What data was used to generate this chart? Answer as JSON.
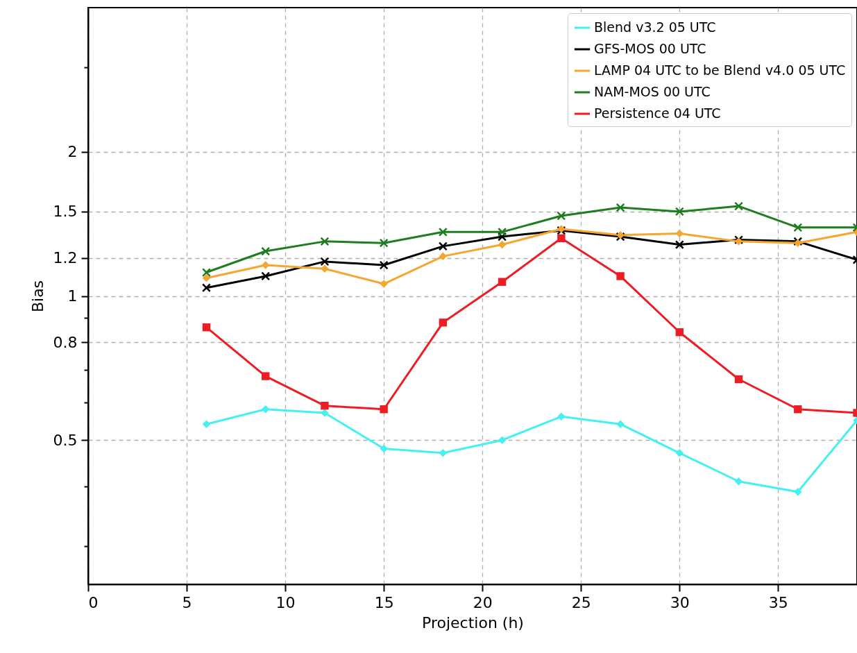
{
  "chart_data": {
    "type": "line",
    "xlabel": "Projection (h)",
    "ylabel": "Bias",
    "x": [
      6,
      9,
      12,
      15,
      18,
      21,
      24,
      27,
      30,
      33,
      36,
      39
    ],
    "series": [
      {
        "name": "Blend v3.2 05 UTC",
        "color": "#44f0f0",
        "marker": "diamond",
        "values": [
          0.54,
          0.58,
          0.57,
          0.48,
          0.47,
          0.5,
          0.56,
          0.54,
          0.47,
          0.41,
          0.39,
          0.55
        ]
      },
      {
        "name": "GFS-MOS 00 UTC",
        "color": "#000000",
        "marker": "cross",
        "values": [
          1.04,
          1.1,
          1.18,
          1.16,
          1.27,
          1.33,
          1.37,
          1.33,
          1.28,
          1.31,
          1.3,
          1.19
        ]
      },
      {
        "name": "LAMP 04 UTC to be Blend v4.0 05 UTC",
        "color": "#f5a530",
        "marker": "diamond",
        "values": [
          1.09,
          1.16,
          1.14,
          1.06,
          1.21,
          1.28,
          1.38,
          1.34,
          1.35,
          1.3,
          1.29,
          1.36
        ]
      },
      {
        "name": "NAM-MOS 00 UTC",
        "color": "#1e7d1e",
        "marker": "cross",
        "values": [
          1.12,
          1.24,
          1.3,
          1.29,
          1.36,
          1.36,
          1.47,
          1.53,
          1.5,
          1.54,
          1.39,
          1.39
        ]
      },
      {
        "name": "Persistence 04 UTC",
        "color": "#ee1c24",
        "marker": "square",
        "values": [
          0.86,
          0.68,
          0.59,
          0.58,
          0.88,
          1.07,
          1.32,
          1.1,
          0.84,
          0.67,
          0.58,
          0.57
        ]
      }
    ],
    "log": "y",
    "xlim": [
      0,
      39
    ],
    "ylim": [
      0.25,
      4
    ],
    "xticks": [
      0,
      5,
      10,
      15,
      20,
      25,
      30,
      35
    ],
    "yticks": [
      {
        "value": 0.3,
        "label": null
      },
      {
        "value": 0.4,
        "label": null
      },
      0.5,
      {
        "value": 0.6,
        "label": null
      },
      {
        "value": 0.7,
        "label": null
      },
      0.8,
      {
        "value": 0.9,
        "label": null
      },
      1,
      1.2,
      1.5,
      2,
      {
        "value": 3,
        "label": null
      }
    ],
    "grid": true,
    "legend": "top right",
    "line_style": "solid"
  }
}
